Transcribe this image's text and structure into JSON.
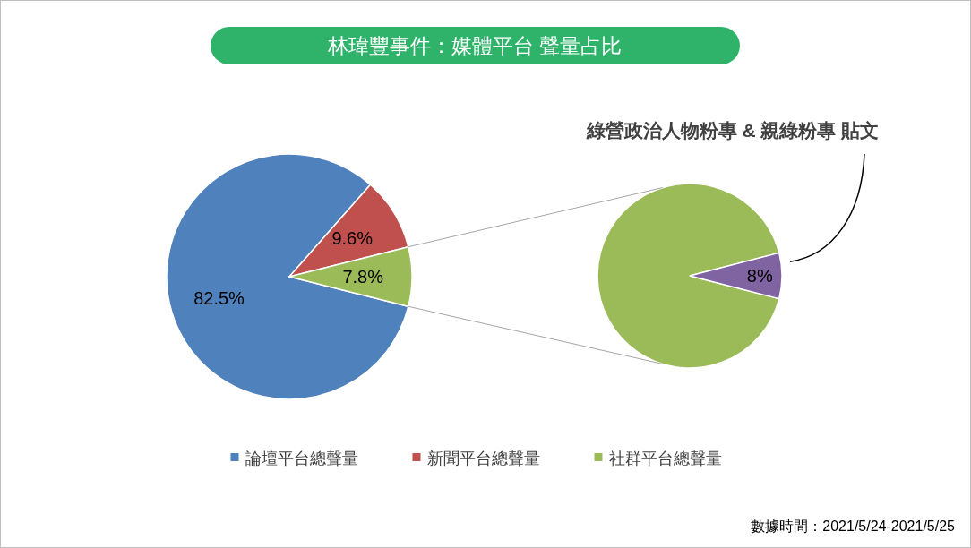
{
  "chart_data": [
    {
      "type": "pie",
      "title": "林瑋豐事件：媒體平台 聲量占比",
      "categories": [
        "論壇平台總聲量",
        "新聞平台總聲量",
        "社群平台總聲量"
      ],
      "values": [
        82.5,
        9.6,
        7.8
      ],
      "colors": [
        "#4f81bd",
        "#c0504d",
        "#9bbb59"
      ],
      "value_labels": [
        "82.5%",
        "9.6%",
        "7.8%"
      ],
      "legend": "bottom"
    },
    {
      "type": "pie",
      "categories": [
        null,
        "綠營政治人物粉專 & 親綠粉專 貼文"
      ],
      "values": [
        92,
        8
      ],
      "colors": [
        "#9bbb59",
        "#8064a2"
      ],
      "value_labels": [
        null,
        "8%"
      ],
      "annotations": [
        "數據時間：2021/5/24-2021/5/25"
      ]
    }
  ]
}
